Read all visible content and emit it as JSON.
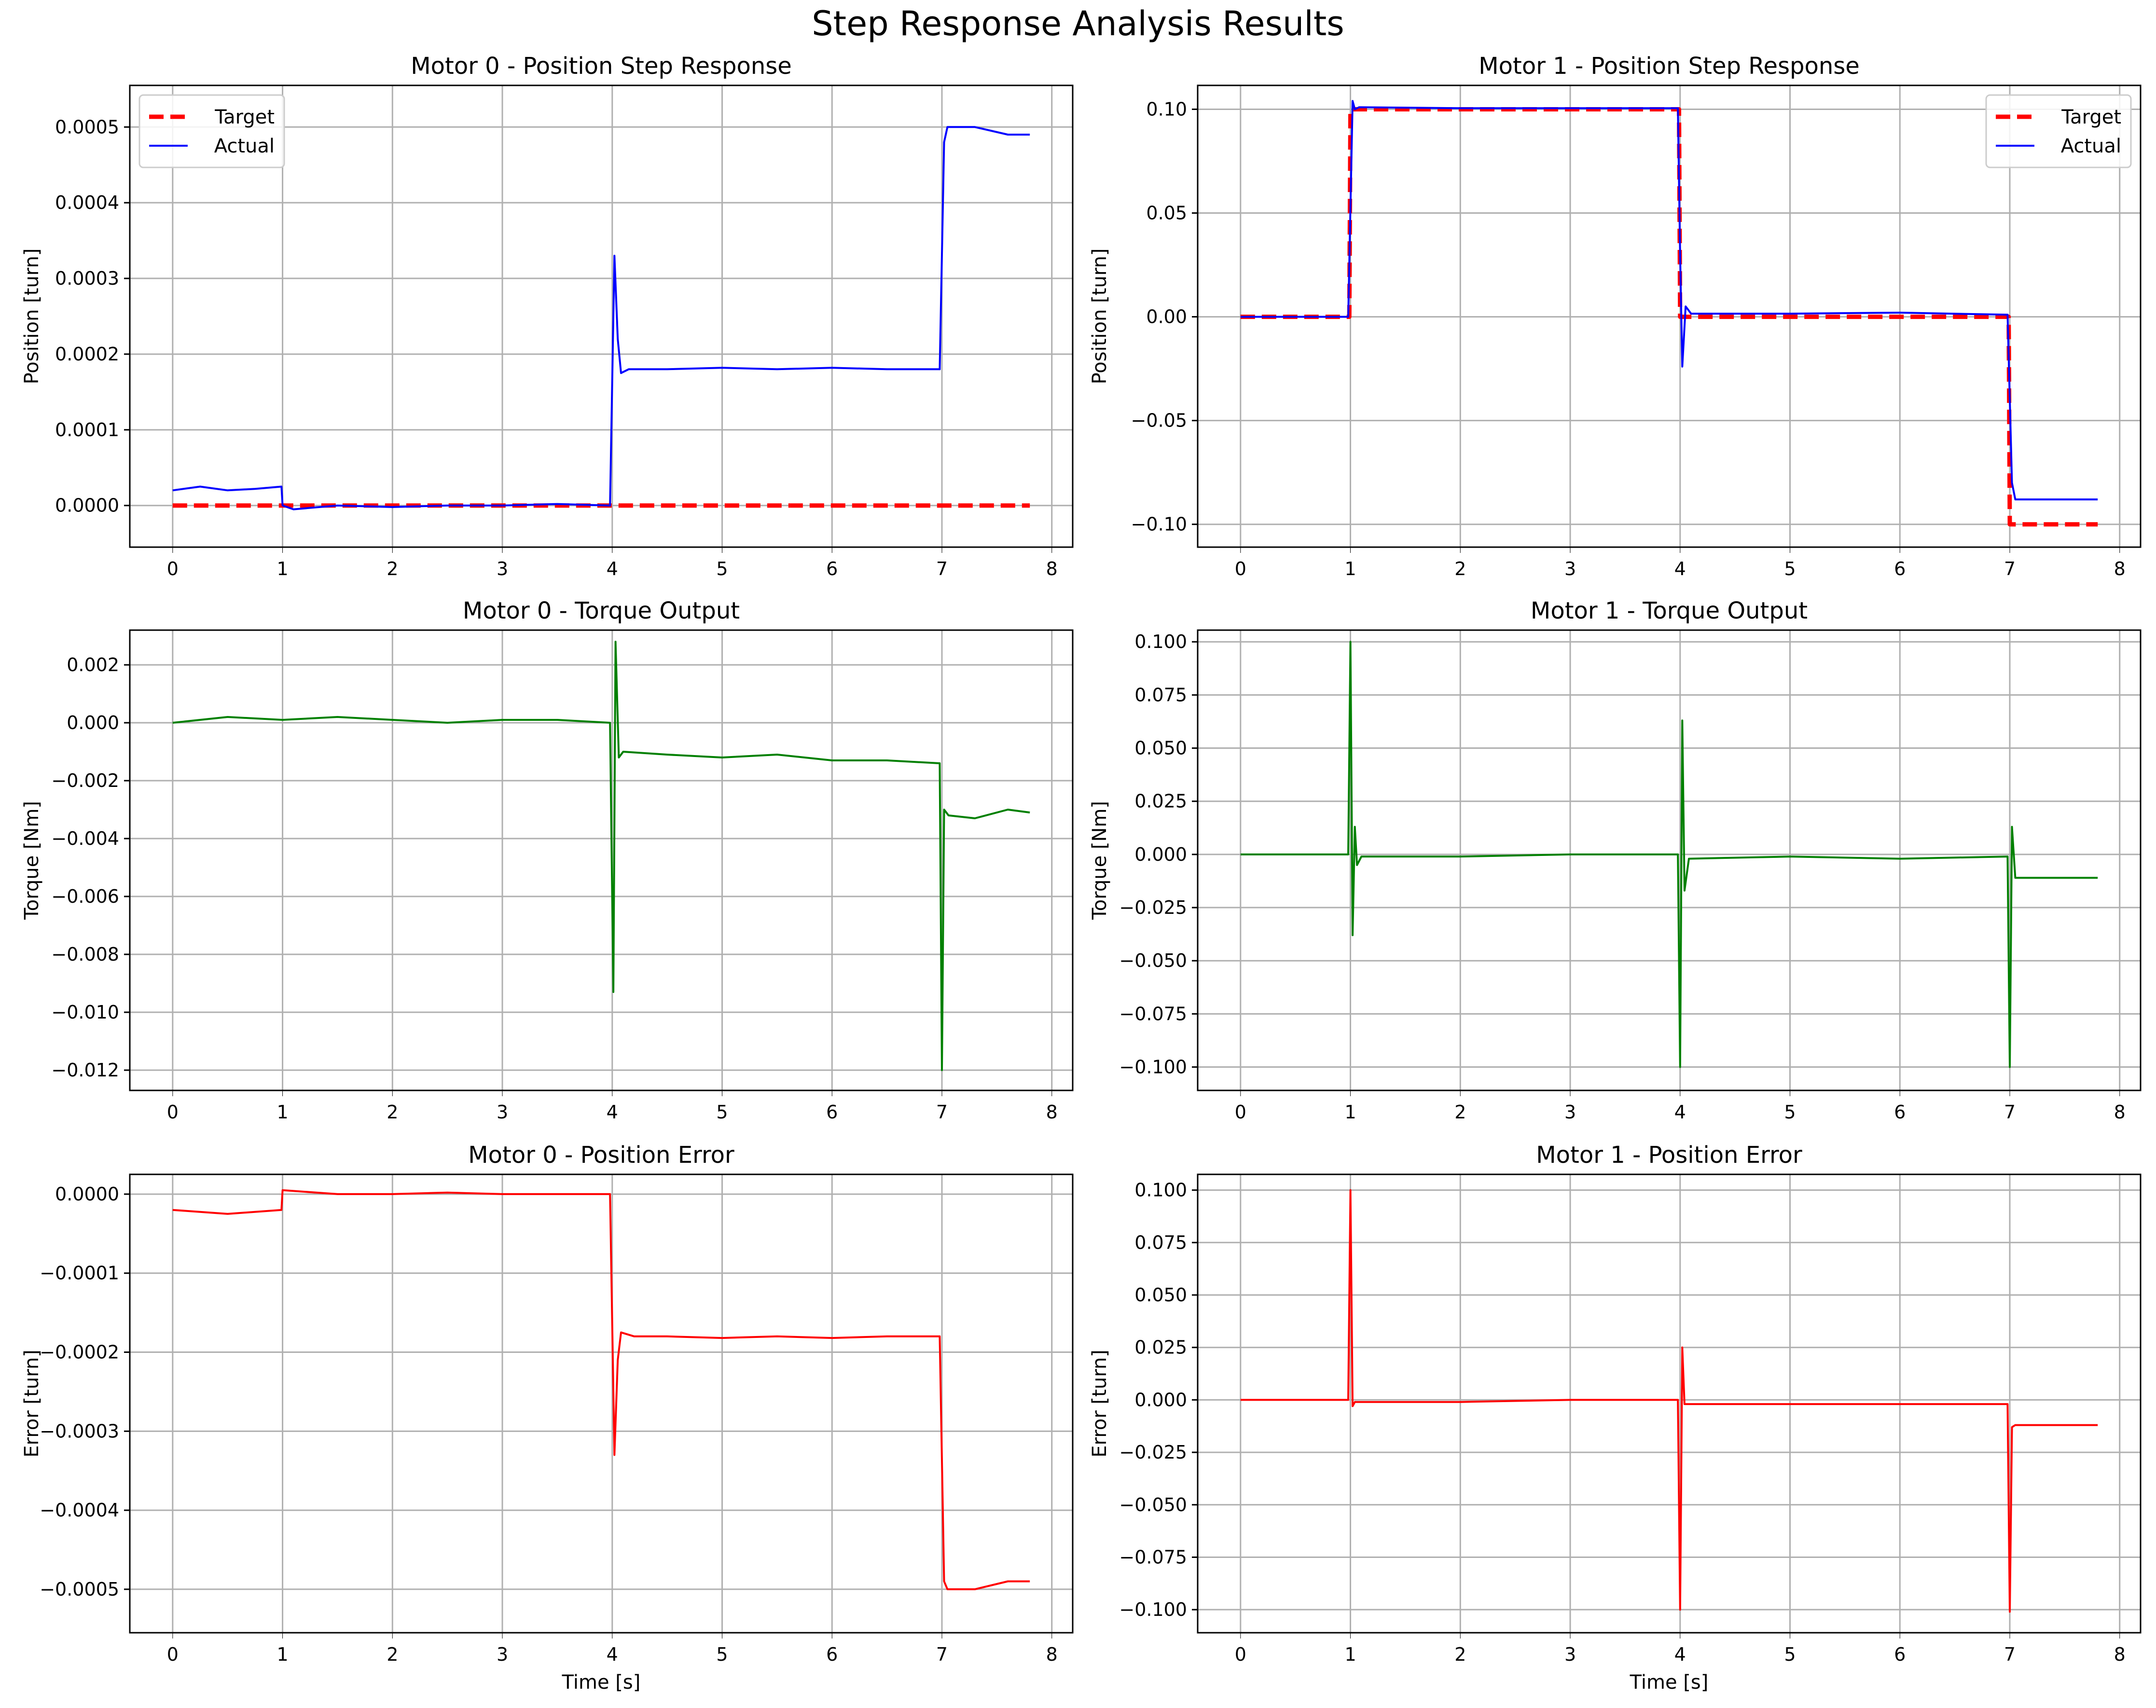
{
  "figure": {
    "title": "Step Response Analysis Results"
  },
  "chart_data": [
    {
      "type": "line",
      "title": "Motor 0 - Position Step Response",
      "xlabel": "",
      "ylabel": "Position [turn]",
      "xlim": [
        -0.39,
        8.19
      ],
      "ylim": [
        -5.5e-05,
        0.000555
      ],
      "xticks": [
        "0",
        "1",
        "2",
        "3",
        "4",
        "5",
        "6",
        "7",
        "8"
      ],
      "yticks": [
        "0.0000",
        "0.0001",
        "0.0002",
        "0.0003",
        "0.0004",
        "0.0005"
      ],
      "ytick_values": [
        0,
        0.0001,
        0.0002,
        0.0003,
        0.0004,
        0.0005
      ],
      "grid": true,
      "legend": "upper-left",
      "series": [
        {
          "name": "Target",
          "color": "#ff0000",
          "style": "dashed",
          "x": [
            0,
            7.8
          ],
          "y": [
            0,
            0
          ]
        },
        {
          "name": "Actual",
          "color": "#0000ff",
          "style": "solid",
          "x": [
            0,
            0.25,
            0.5,
            0.75,
            0.99,
            1.0,
            1.1,
            1.5,
            2,
            2.5,
            3,
            3.5,
            3.98,
            4.02,
            4.05,
            4.08,
            4.15,
            4.5,
            5,
            5.5,
            6,
            6.5,
            6.98,
            7.02,
            7.05,
            7.3,
            7.6,
            7.8
          ],
          "y": [
            2e-05,
            2.5e-05,
            2e-05,
            2.2e-05,
            2.5e-05,
            0.0,
            -5e-06,
            0.0,
            -2e-06,
            0.0,
            0.0,
            2e-06,
            0.0,
            0.00033,
            0.00022,
            0.000175,
            0.00018,
            0.00018,
            0.000182,
            0.00018,
            0.000182,
            0.00018,
            0.00018,
            0.00048,
            0.0005,
            0.0005,
            0.00049,
            0.00049
          ]
        }
      ]
    },
    {
      "type": "line",
      "title": "Motor 1 - Position Step Response",
      "xlabel": "",
      "ylabel": "Position [turn]",
      "xlim": [
        -0.39,
        8.19
      ],
      "ylim": [
        -0.111,
        0.1115
      ],
      "xticks": [
        "0",
        "1",
        "2",
        "3",
        "4",
        "5",
        "6",
        "7",
        "8"
      ],
      "yticks": [
        "0.10",
        "0.05",
        "0.00",
        "−0.05",
        "−0.10"
      ],
      "ytick_values": [
        0.1,
        0.05,
        0,
        -0.05,
        -0.1
      ],
      "grid": true,
      "legend": "upper-right",
      "series": [
        {
          "name": "Target",
          "color": "#ff0000",
          "style": "dashed",
          "x": [
            0,
            0.99,
            1.0,
            3.99,
            4.0,
            6.99,
            7.0,
            7.8
          ],
          "y": [
            0,
            0,
            0.1,
            0.1,
            0,
            0,
            -0.1,
            -0.1
          ]
        },
        {
          "name": "Actual",
          "color": "#0000ff",
          "style": "solid",
          "x": [
            0,
            0.98,
            1.02,
            1.04,
            1.08,
            2,
            3,
            3.98,
            4.0,
            4.02,
            4.05,
            4.1,
            5,
            6,
            6.98,
            7.02,
            7.05,
            7.8
          ],
          "y": [
            0,
            0,
            0.104,
            0.1,
            0.101,
            0.1005,
            0.1005,
            0.1005,
            0.03,
            -0.024,
            0.005,
            0.0015,
            0.0015,
            0.002,
            0.001,
            -0.08,
            -0.088,
            -0.088
          ]
        }
      ]
    },
    {
      "type": "line",
      "title": "Motor 0 - Torque Output",
      "xlabel": "",
      "ylabel": "Torque [Nm]",
      "xlim": [
        -0.39,
        8.19
      ],
      "ylim": [
        -0.0127,
        0.0032
      ],
      "xticks": [
        "0",
        "1",
        "2",
        "3",
        "4",
        "5",
        "6",
        "7",
        "8"
      ],
      "yticks": [
        "0.002",
        "0.000",
        "−0.002",
        "−0.004",
        "−0.006",
        "−0.008",
        "−0.010",
        "−0.012"
      ],
      "ytick_values": [
        0.002,
        0,
        -0.002,
        -0.004,
        -0.006,
        -0.008,
        -0.01,
        -0.012
      ],
      "grid": true,
      "legend": "none",
      "series": [
        {
          "name": "",
          "color": "#008000",
          "style": "solid",
          "x": [
            0,
            0.5,
            1,
            1.5,
            2,
            2.5,
            3,
            3.5,
            3.98,
            4.01,
            4.03,
            4.06,
            4.1,
            4.5,
            5,
            5.5,
            6,
            6.5,
            6.98,
            7.0,
            7.02,
            7.06,
            7.3,
            7.6,
            7.8
          ],
          "y": [
            0,
            0.0002,
            0.0001,
            0.0002,
            0.0001,
            0.0,
            0.0001,
            0.0001,
            0.0,
            -0.0093,
            0.0028,
            -0.0012,
            -0.001,
            -0.0011,
            -0.0012,
            -0.0011,
            -0.0013,
            -0.0013,
            -0.0014,
            -0.012,
            -0.003,
            -0.0032,
            -0.0033,
            -0.003,
            -0.0031
          ]
        }
      ]
    },
    {
      "type": "line",
      "title": "Motor 1 - Torque Output",
      "xlabel": "",
      "ylabel": "Torque [Nm]",
      "xlim": [
        -0.39,
        8.19
      ],
      "ylim": [
        -0.111,
        0.1055
      ],
      "xticks": [
        "0",
        "1",
        "2",
        "3",
        "4",
        "5",
        "6",
        "7",
        "8"
      ],
      "yticks": [
        "0.100",
        "0.075",
        "0.050",
        "0.025",
        "0.000",
        "−0.025",
        "−0.050",
        "−0.075",
        "−0.100"
      ],
      "ytick_values": [
        0.1,
        0.075,
        0.05,
        0.025,
        0,
        -0.025,
        -0.05,
        -0.075,
        -0.1
      ],
      "grid": true,
      "legend": "none",
      "series": [
        {
          "name": "",
          "color": "#008000",
          "style": "solid",
          "x": [
            0,
            0.98,
            1.0,
            1.02,
            1.04,
            1.06,
            1.1,
            2,
            3,
            3.98,
            4.0,
            4.02,
            4.04,
            4.08,
            5,
            6,
            6.98,
            7.0,
            7.02,
            7.05,
            7.8
          ],
          "y": [
            0,
            0,
            0.1,
            -0.038,
            0.013,
            -0.005,
            -0.001,
            -0.001,
            0,
            0,
            -0.1,
            0.063,
            -0.017,
            -0.002,
            -0.001,
            -0.002,
            -0.001,
            -0.1,
            0.013,
            -0.011,
            -0.011
          ]
        }
      ]
    },
    {
      "type": "line",
      "title": "Motor 0 - Position Error",
      "xlabel": "Time [s]",
      "ylabel": "Error [turn]",
      "xlim": [
        -0.39,
        8.19
      ],
      "ylim": [
        -0.000555,
        2.5e-05
      ],
      "xticks": [
        "0",
        "1",
        "2",
        "3",
        "4",
        "5",
        "6",
        "7",
        "8"
      ],
      "yticks": [
        "0.0000",
        "−0.0001",
        "−0.0002",
        "−0.0003",
        "−0.0004",
        "−0.0005"
      ],
      "ytick_values": [
        0,
        -0.0001,
        -0.0002,
        -0.0003,
        -0.0004,
        -0.0005
      ],
      "grid": true,
      "legend": "none",
      "series": [
        {
          "name": "",
          "color": "#ff0000",
          "style": "solid",
          "x": [
            0,
            0.5,
            0.99,
            1.0,
            1.5,
            2,
            2.5,
            3,
            3.5,
            3.98,
            4.02,
            4.05,
            4.08,
            4.2,
            4.5,
            5,
            5.5,
            6,
            6.5,
            6.98,
            7.02,
            7.05,
            7.3,
            7.6,
            7.8
          ],
          "y": [
            -2e-05,
            -2.5e-05,
            -2e-05,
            5e-06,
            0.0,
            0.0,
            2e-06,
            0.0,
            0.0,
            0.0,
            -0.00033,
            -0.00021,
            -0.000175,
            -0.00018,
            -0.00018,
            -0.000182,
            -0.00018,
            -0.000182,
            -0.00018,
            -0.00018,
            -0.00049,
            -0.0005,
            -0.0005,
            -0.00049,
            -0.00049
          ]
        }
      ]
    },
    {
      "type": "line",
      "title": "Motor 1 - Position Error",
      "xlabel": "Time [s]",
      "ylabel": "Error [turn]",
      "xlim": [
        -0.39,
        8.19
      ],
      "ylim": [
        -0.111,
        0.1075
      ],
      "xticks": [
        "0",
        "1",
        "2",
        "3",
        "4",
        "5",
        "6",
        "7",
        "8"
      ],
      "yticks": [
        "0.100",
        "0.075",
        "0.050",
        "0.025",
        "0.000",
        "−0.025",
        "−0.050",
        "−0.075",
        "−0.100"
      ],
      "ytick_values": [
        0.1,
        0.075,
        0.05,
        0.025,
        0,
        -0.025,
        -0.05,
        -0.075,
        -0.1
      ],
      "grid": true,
      "legend": "none",
      "series": [
        {
          "name": "",
          "color": "#ff0000",
          "style": "solid",
          "x": [
            0,
            0.98,
            1.0,
            1.02,
            1.04,
            1.08,
            2,
            3,
            3.98,
            4.0,
            4.02,
            4.04,
            4.08,
            5,
            6,
            6.98,
            7.0,
            7.02,
            7.05,
            7.8
          ],
          "y": [
            0,
            0,
            0.1,
            -0.003,
            -0.001,
            -0.001,
            -0.001,
            0,
            0,
            -0.1,
            0.025,
            -0.002,
            -0.002,
            -0.002,
            -0.002,
            -0.002,
            -0.101,
            -0.013,
            -0.012,
            -0.012
          ]
        }
      ]
    }
  ]
}
